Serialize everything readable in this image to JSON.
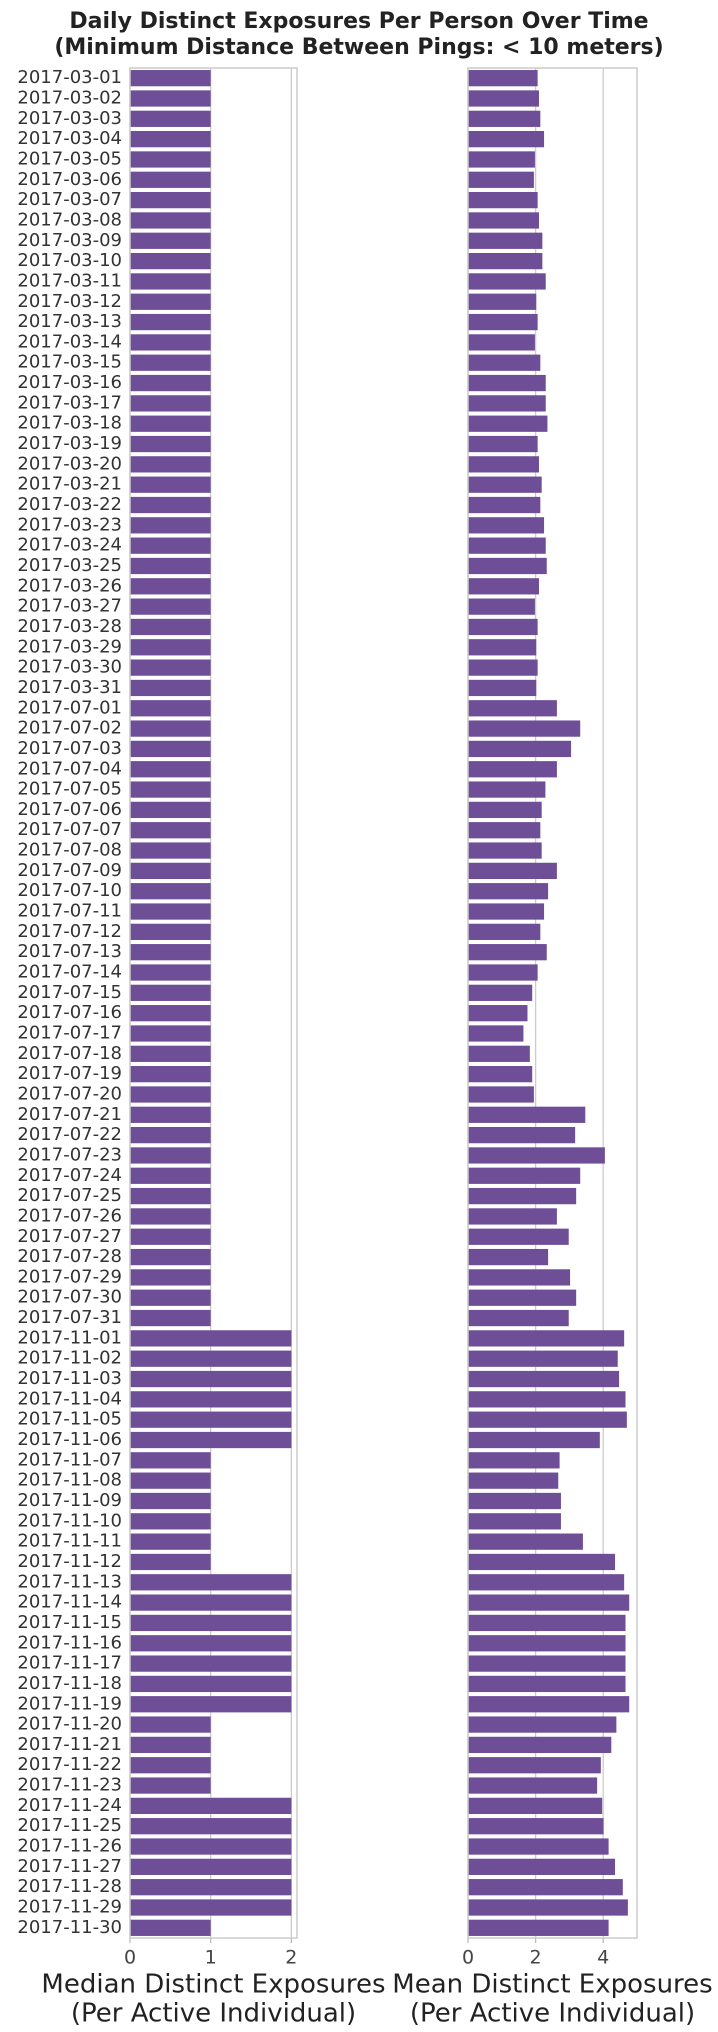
{
  "title": [
    "Daily Distinct Exposures Per Person Over Time",
    "(Minimum Distance Between Pings: < 10 meters)"
  ],
  "categories": [
    "2017-03-01",
    "2017-03-02",
    "2017-03-03",
    "2017-03-04",
    "2017-03-05",
    "2017-03-06",
    "2017-03-07",
    "2017-03-08",
    "2017-03-09",
    "2017-03-10",
    "2017-03-11",
    "2017-03-12",
    "2017-03-13",
    "2017-03-14",
    "2017-03-15",
    "2017-03-16",
    "2017-03-17",
    "2017-03-18",
    "2017-03-19",
    "2017-03-20",
    "2017-03-21",
    "2017-03-22",
    "2017-03-23",
    "2017-03-24",
    "2017-03-25",
    "2017-03-26",
    "2017-03-27",
    "2017-03-28",
    "2017-03-29",
    "2017-03-30",
    "2017-03-31",
    "2017-07-01",
    "2017-07-02",
    "2017-07-03",
    "2017-07-04",
    "2017-07-05",
    "2017-07-06",
    "2017-07-07",
    "2017-07-08",
    "2017-07-09",
    "2017-07-10",
    "2017-07-11",
    "2017-07-12",
    "2017-07-13",
    "2017-07-14",
    "2017-07-15",
    "2017-07-16",
    "2017-07-17",
    "2017-07-18",
    "2017-07-19",
    "2017-07-20",
    "2017-07-21",
    "2017-07-22",
    "2017-07-23",
    "2017-07-24",
    "2017-07-25",
    "2017-07-26",
    "2017-07-27",
    "2017-07-28",
    "2017-07-29",
    "2017-07-30",
    "2017-07-31",
    "2017-11-01",
    "2017-11-02",
    "2017-11-03",
    "2017-11-04",
    "2017-11-05",
    "2017-11-06",
    "2017-11-07",
    "2017-11-08",
    "2017-11-09",
    "2017-11-10",
    "2017-11-11",
    "2017-11-12",
    "2017-11-13",
    "2017-11-14",
    "2017-11-15",
    "2017-11-16",
    "2017-11-17",
    "2017-11-18",
    "2017-11-19",
    "2017-11-20",
    "2017-11-21",
    "2017-11-22",
    "2017-11-23",
    "2017-11-24",
    "2017-11-25",
    "2017-11-26",
    "2017-11-27",
    "2017-11-28",
    "2017-11-29",
    "2017-11-30"
  ],
  "chart_data": [
    {
      "type": "hbar",
      "xlabel": [
        "Median Distinct Exposures",
        "(Per Active Individual)"
      ],
      "color": "#6f4e98",
      "values": [
        1,
        1,
        1,
        1,
        1,
        1,
        1,
        1,
        1,
        1,
        1,
        1,
        1,
        1,
        1,
        1,
        1,
        1,
        1,
        1,
        1,
        1,
        1,
        1,
        1,
        1,
        1,
        1,
        1,
        1,
        1,
        1,
        1,
        1,
        1,
        1,
        1,
        1,
        1,
        1,
        1,
        1,
        1,
        1,
        1,
        1,
        1,
        1,
        1,
        1,
        1,
        1,
        1,
        1,
        1,
        1,
        1,
        1,
        1,
        1,
        1,
        1,
        2,
        2,
        2,
        2,
        2,
        2,
        1,
        1,
        1,
        1,
        1,
        1,
        2,
        2,
        2,
        2,
        2,
        2,
        2,
        1,
        1,
        1,
        1,
        2,
        2,
        2,
        2,
        2,
        2,
        1
      ],
      "xlim": [
        0,
        2.07
      ],
      "xticks": [
        0,
        1,
        2
      ],
      "grid": true
    },
    {
      "type": "hbar",
      "xlabel": [
        "Mean Distinct Exposures",
        "(Per Active Individual)"
      ],
      "color": "#6f4e98",
      "values": [
        2.06,
        2.1,
        2.14,
        2.25,
        1.98,
        1.95,
        2.06,
        2.1,
        2.2,
        2.2,
        2.3,
        2.02,
        2.06,
        1.98,
        2.14,
        2.3,
        2.3,
        2.35,
        2.06,
        2.1,
        2.18,
        2.14,
        2.25,
        2.3,
        2.33,
        2.1,
        1.98,
        2.06,
        2.02,
        2.06,
        2.02,
        2.63,
        3.32,
        3.05,
        2.63,
        2.29,
        2.18,
        2.14,
        2.18,
        2.63,
        2.37,
        2.25,
        2.14,
        2.33,
        2.06,
        1.9,
        1.76,
        1.64,
        1.83,
        1.9,
        1.95,
        3.47,
        3.17,
        4.05,
        3.32,
        3.2,
        2.63,
        2.98,
        2.37,
        3.02,
        3.2,
        2.98,
        4.62,
        4.43,
        4.47,
        4.66,
        4.7,
        3.9,
        2.71,
        2.67,
        2.75,
        2.75,
        3.4,
        4.35,
        4.62,
        4.77,
        4.66,
        4.66,
        4.66,
        4.66,
        4.77,
        4.39,
        4.24,
        3.93,
        3.82,
        3.97,
        4.01,
        4.16,
        4.35,
        4.58,
        4.73,
        4.16
      ],
      "xlim": [
        0,
        5.0
      ],
      "xticks": [
        0,
        2,
        4
      ],
      "grid": true
    }
  ]
}
